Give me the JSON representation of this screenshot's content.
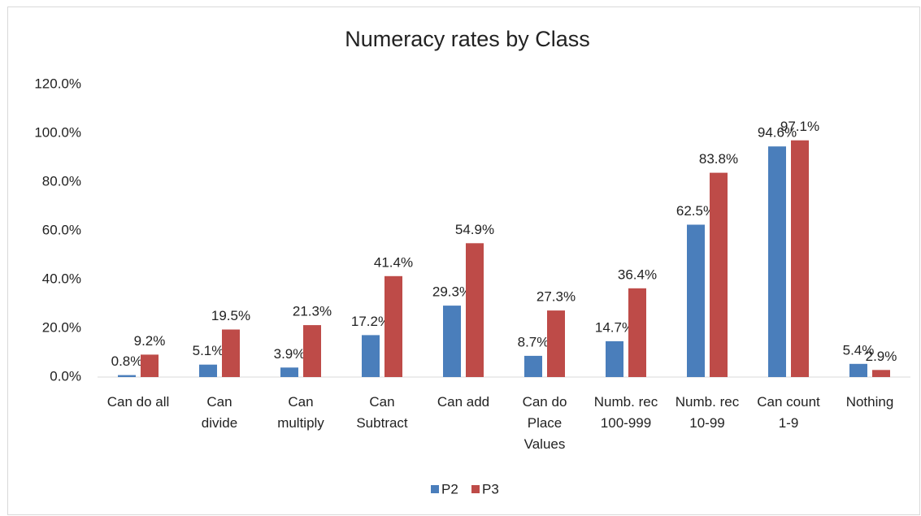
{
  "chart_data": {
    "type": "bar",
    "title": "Numeracy rates by Class",
    "categories": [
      "Can do all",
      "Can\ndivide",
      "Can\nmultiply",
      "Can\nSubtract",
      "Can add",
      "Can do\nPlace\nValues",
      "Numb. rec\n100-999",
      "Numb. rec\n10-99",
      "Can count\n1-9",
      "Nothing"
    ],
    "series": [
      {
        "name": "P2",
        "color": "#4a7ebb",
        "values": [
          0.8,
          5.1,
          3.9,
          17.2,
          29.3,
          8.7,
          14.7,
          62.5,
          94.6,
          5.4
        ],
        "value_labels": [
          "0.8%",
          "5.1%",
          "3.9%",
          "17.2%",
          "29.3%",
          "8.7%",
          "14.7%",
          "62.5%",
          "94.6%",
          "5.4%"
        ]
      },
      {
        "name": "P3",
        "color": "#be4b48",
        "values": [
          9.2,
          19.5,
          21.3,
          41.4,
          54.9,
          27.3,
          36.4,
          83.8,
          97.1,
          2.9
        ],
        "value_labels": [
          "9.2%",
          "19.5%",
          "21.3%",
          "41.4%",
          "54.9%",
          "27.3%",
          "36.4%",
          "83.8%",
          "97.1%",
          "2.9%"
        ]
      }
    ],
    "ylim": [
      0,
      120
    ],
    "yticks": [
      {
        "value": 0,
        "label": "0.0%"
      },
      {
        "value": 20,
        "label": "20.0%"
      },
      {
        "value": 40,
        "label": "40.0%"
      },
      {
        "value": 60,
        "label": "60.0%"
      },
      {
        "value": 80,
        "label": "80.0%"
      },
      {
        "value": 100,
        "label": "100.0%"
      },
      {
        "value": 120,
        "label": "120.0%"
      }
    ],
    "grid": false,
    "legend": "bottom"
  }
}
